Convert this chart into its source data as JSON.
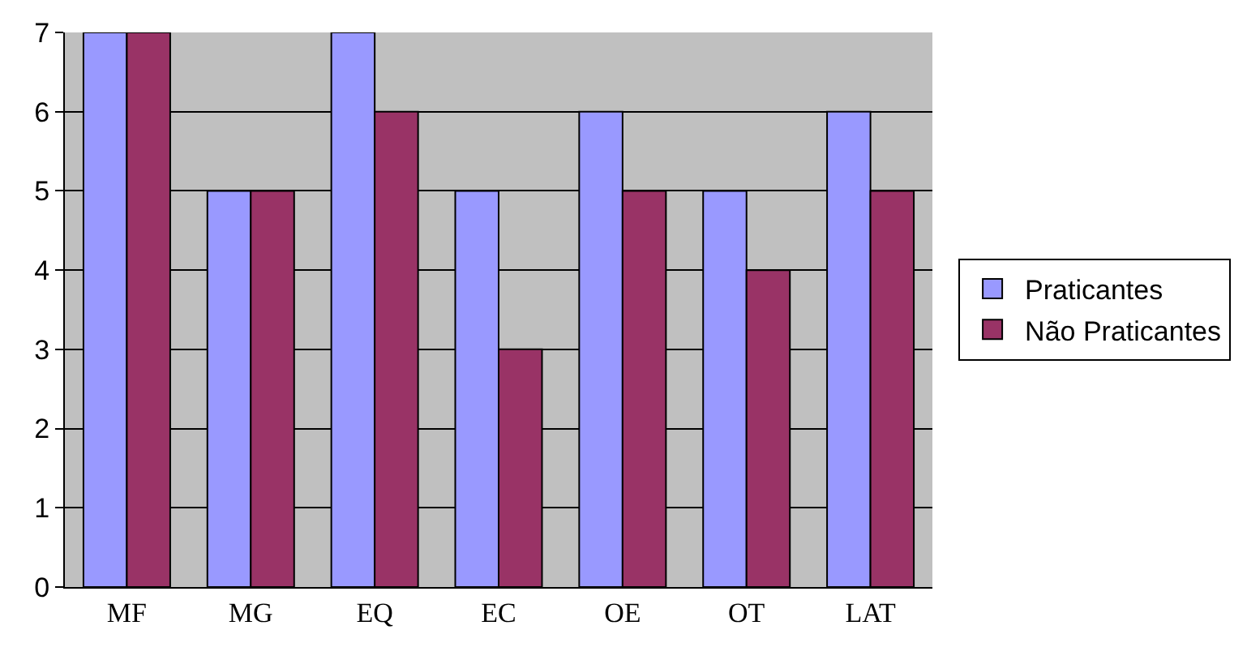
{
  "chart_data": {
    "type": "bar",
    "categories": [
      "MF",
      "MG",
      "EQ",
      "EC",
      "OE",
      "OT",
      "LAT"
    ],
    "series": [
      {
        "name": "Praticantes",
        "color": "#9999ff",
        "values": [
          7,
          5,
          7,
          5,
          6,
          5,
          6
        ]
      },
      {
        "name": "Não Praticantes",
        "color": "#993366",
        "values": [
          7,
          5,
          6,
          3,
          5,
          4,
          5
        ]
      }
    ],
    "ylim": [
      0,
      7
    ],
    "yticks": [
      0,
      1,
      2,
      3,
      4,
      5,
      6,
      7
    ],
    "grid": "y",
    "legend": "right"
  }
}
